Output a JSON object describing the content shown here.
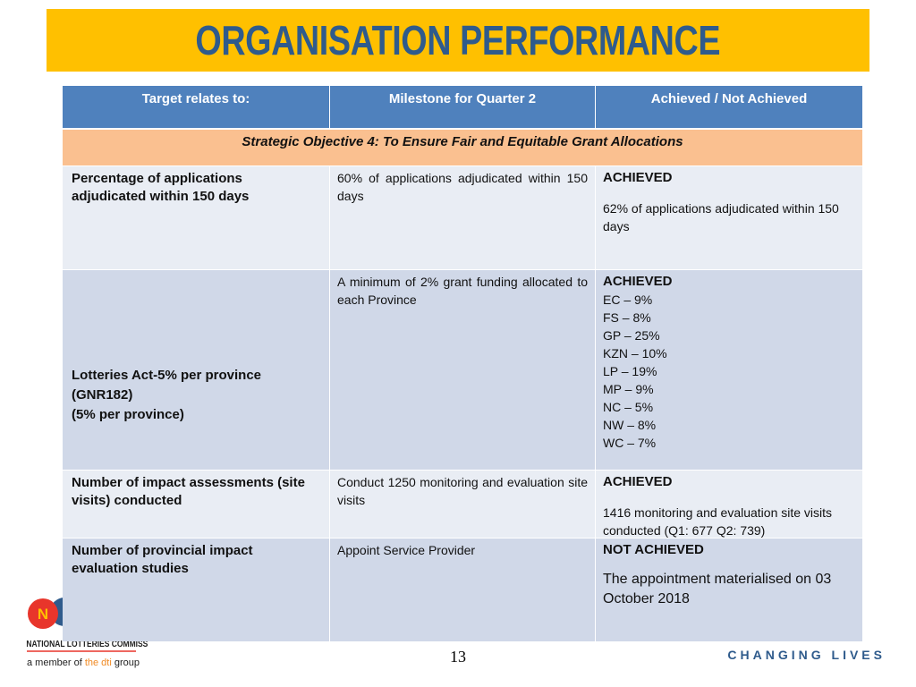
{
  "header": {
    "title": "ORGANISATION PERFORMANCE"
  },
  "table": {
    "columns": [
      "Target relates to:",
      "Milestone for Quarter 2",
      "Achieved / Not Achieved"
    ],
    "objective": "Strategic Objective 4: To Ensure Fair and Equitable Grant Allocations",
    "rows": [
      {
        "target": [
          "Percentage of applications adjudicated within 150 days"
        ],
        "milestone": "60% of applications adjudicated within 150 days",
        "status": "ACHIEVED",
        "details": [
          "62% of applications adjudicated within 150 days"
        ]
      },
      {
        "target": [
          "Lotteries Act-5% per province",
          "(GNR182)",
          "(5% per province)"
        ],
        "milestone": "A minimum of 2% grant funding allocated to each Province",
        "status": "ACHIEVED",
        "details": [
          "EC – 9%",
          "FS – 8%",
          "GP – 25%",
          "KZN – 10%",
          "LP – 19%",
          "MP – 9%",
          "NC – 5%",
          "NW – 8%",
          "WC – 7%"
        ]
      },
      {
        "target": [
          "Number of impact assessments (site visits) conducted"
        ],
        "milestone": "Conduct 1250 monitoring and evaluation site visits",
        "status": "ACHIEVED",
        "details": [
          "1416 monitoring and evaluation site visits conducted (Q1: 677 Q2: 739)"
        ]
      },
      {
        "target": [
          "Number of  provincial impact evaluation studies"
        ],
        "milestone": "Appoint Service Provider",
        "status": "NOT ACHIEVED",
        "details": [
          "The appointment materialised on 03 October 2018"
        ]
      }
    ]
  },
  "footer": {
    "logo_letter": "N",
    "logo_name": "NATIONAL LOTTERIES COMMISSION",
    "member": [
      "a member of ",
      "the dti",
      " group"
    ],
    "page_number": "13",
    "slogan": "CHANGING LIVES"
  }
}
